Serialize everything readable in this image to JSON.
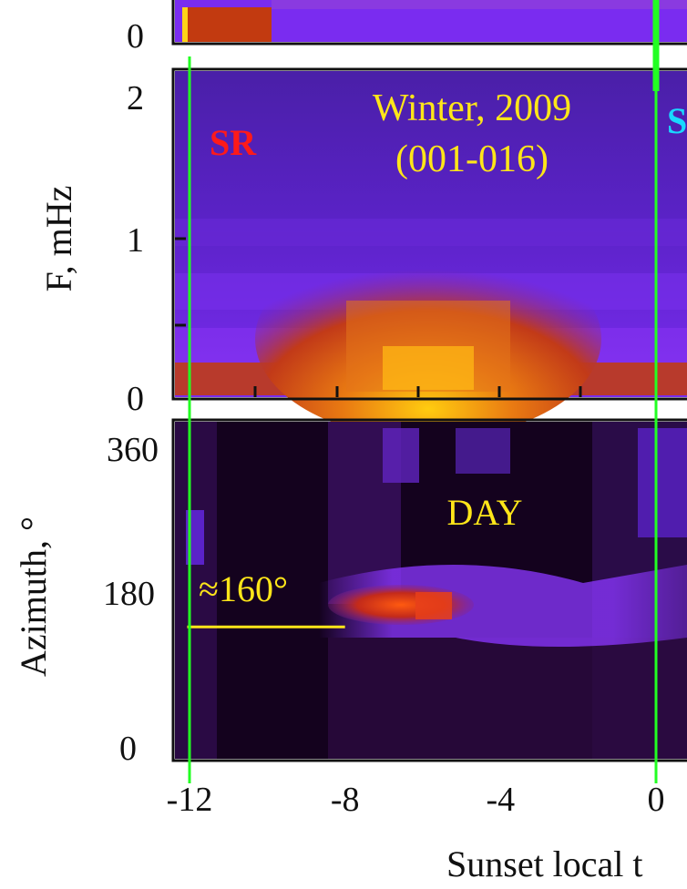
{
  "chart_data": [
    {
      "type": "heatmap",
      "panel": "top (partially visible)",
      "yticks": [
        "0"
      ],
      "colors": [
        "#7a2cf0",
        "#c03a10",
        "#d86010"
      ]
    },
    {
      "type": "heatmap",
      "panel": "frequency spectrum",
      "ylabel": "F, mHz",
      "ylim": [
        0,
        2.1
      ],
      "yticks": [
        "0",
        "1",
        "2"
      ],
      "xlim": [
        -12.4,
        0.4
      ],
      "annotations": {
        "sr": "SR",
        "ss": "S",
        "season": "Winter, 2009",
        "days": "(001-016)"
      },
      "annotation_colors": {
        "sr": "#ff1a1a",
        "ss": "#19d9ff",
        "season": "#ffe619"
      },
      "hot_region": {
        "x": [
          -9,
          -1
        ],
        "y": [
          0,
          1.0
        ],
        "peak_x": -6.5
      }
    },
    {
      "type": "heatmap",
      "panel": "azimuth",
      "ylabel": "Azimuth, °",
      "ylim": [
        0,
        360
      ],
      "yticks": [
        "0",
        "180",
        "360"
      ],
      "xlim": [
        -12.4,
        0.4
      ],
      "xticks": [
        "-12",
        "-8",
        "-4",
        "0"
      ],
      "xlabel": "Sunset local t",
      "annotations": {
        "day": "DAY",
        "azimuth_marker": "≈160°"
      },
      "azimuth_marker": {
        "value": 160,
        "x_from": -12.2,
        "x_to": -8.0
      },
      "hot_region": {
        "x": [
          -7.6,
          -5.0
        ],
        "y": [
          150,
          175
        ]
      },
      "vertical_lines": [
        -12,
        0
      ],
      "vertical_line_color": "#22ff22"
    }
  ]
}
